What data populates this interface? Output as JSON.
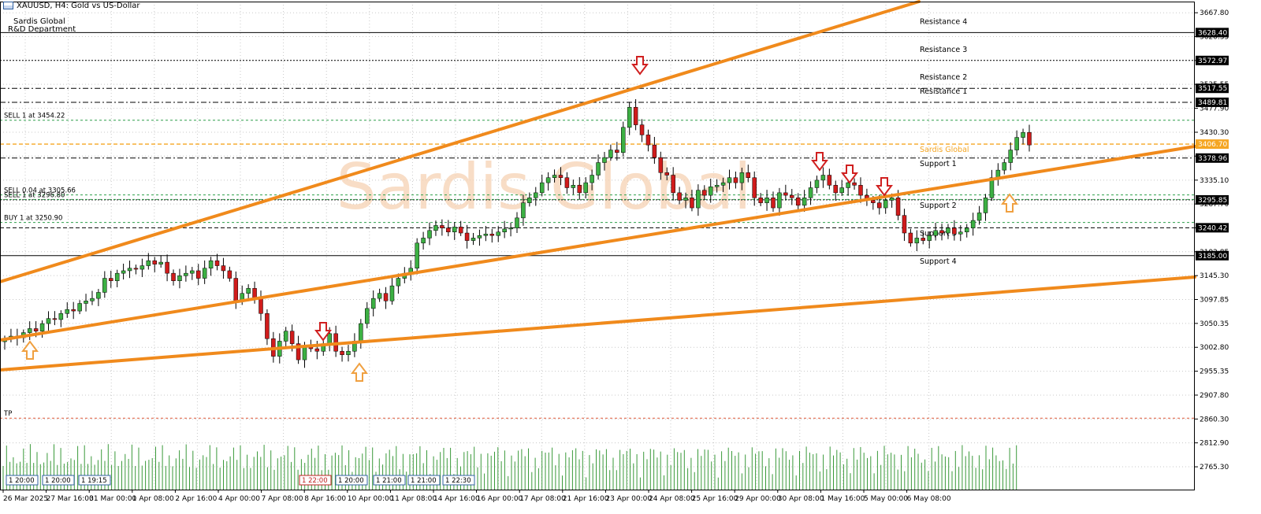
{
  "header": {
    "symbol_label": "XAUUSD, H4:  Gold vs US-Dollar",
    "company": "Sardis Global",
    "department": "R&D Department"
  },
  "watermark": "Sardis Global",
  "chart_data": {
    "type": "candlestick",
    "ylim": [
      2720,
      3690
    ],
    "price_ticks": [
      "3667.80",
      "3620.35",
      "3572.97",
      "3525.55",
      "3477.90",
      "3430.30",
      "3382.90",
      "3335.10",
      "3287.70",
      "3240.20",
      "3192.85",
      "3145.30",
      "3097.85",
      "3050.35",
      "3002.80",
      "2955.35",
      "2907.80",
      "2860.30",
      "2812.90",
      "2765.30"
    ],
    "time_labels": [
      "26 Mar 2025",
      "27 Mar 16:00",
      "31 Mar 00:00",
      "1 Apr 08:00",
      "2 Apr 16:00",
      "4 Apr 00:00",
      "7 Apr 08:00",
      "8 Apr 16:00",
      "10 Apr 00:00",
      "11 Apr 08:00",
      "14 Apr 16:00",
      "16 Apr 00:00",
      "17 Apr 08:00",
      "21 Apr 16:00",
      "23 Apr 00:00",
      "24 Apr 08:00",
      "25 Apr 16:00",
      "29 Apr 00:00",
      "30 Apr 08:00",
      "1 May 16:00",
      "5 May 00:00",
      "6 May 08:00"
    ],
    "levels": [
      {
        "name": "Resistance 4",
        "price": 3628.4,
        "label": "3628.40",
        "style": "solid",
        "color": "#000000"
      },
      {
        "name": "Resistance 3",
        "price": 3572.97,
        "label": "3572.97",
        "style": "dotted",
        "color": "#000000"
      },
      {
        "name": "Resistance 2",
        "price": 3517.55,
        "label": "3517.55",
        "style": "dashdot",
        "color": "#000000"
      },
      {
        "name": "Resistance 1",
        "price": 3489.81,
        "label": "3489.81",
        "style": "dashdot",
        "color": "#000000"
      },
      {
        "name": "Sardis Global",
        "price": 3406.7,
        "label": "3406.70",
        "style": "dashed",
        "color": "#f5a623"
      },
      {
        "name": "Support 1",
        "price": 3378.96,
        "label": "3378.96",
        "style": "dashdot",
        "color": "#000000"
      },
      {
        "name": "Support 2",
        "price": 3295.85,
        "label": "3295.85",
        "style": "dotted",
        "color": "#000000"
      },
      {
        "name": "Support 3",
        "price": 3240.42,
        "label": "3240.42",
        "style": "dashed",
        "color": "#000000"
      },
      {
        "name": "Support 4",
        "price": 3185.0,
        "label": "3185.00",
        "style": "solid",
        "color": "#000000"
      }
    ],
    "order_lines": [
      {
        "label": "SELL 1 at 3454.22",
        "price": 3454.22
      },
      {
        "label": "SELL 0.04 at 3305.66",
        "price": 3305.66
      },
      {
        "label": "SELL 1 at 3296.80",
        "price": 3296.8
      },
      {
        "label": "BUY 1 at 3250.90",
        "price": 3250.9
      },
      {
        "label": "TP",
        "price": 2862
      }
    ],
    "trade_badges": [
      "1 20:00",
      "1 20:00",
      "1 19:15",
      "1 22:00",
      "1 20:00",
      "1 21:00",
      "1 21:00",
      "1 22:30"
    ],
    "closes": [
      3020,
      3025,
      3022,
      3032,
      3040,
      3035,
      3050,
      3060,
      3058,
      3070,
      3078,
      3075,
      3090,
      3095,
      3100,
      3112,
      3140,
      3135,
      3150,
      3155,
      3160,
      3158,
      3165,
      3175,
      3168,
      3172,
      3150,
      3135,
      3145,
      3150,
      3155,
      3140,
      3160,
      3175,
      3165,
      3155,
      3140,
      3095,
      3110,
      3120,
      3100,
      3070,
      3020,
      2985,
      3015,
      3035,
      3010,
      2978,
      3005,
      3000,
      2995,
      3010,
      3030,
      2995,
      2988,
      2995,
      3015,
      3050,
      3080,
      3100,
      3110,
      3095,
      3125,
      3140,
      3150,
      3160,
      3210,
      3220,
      3235,
      3245,
      3240,
      3232,
      3242,
      3230,
      3215,
      3220,
      3225,
      3228,
      3225,
      3232,
      3238,
      3240,
      3260,
      3290,
      3300,
      3310,
      3330,
      3340,
      3345,
      3340,
      3320,
      3325,
      3310,
      3330,
      3345,
      3370,
      3380,
      3395,
      3390,
      3440,
      3480,
      3445,
      3425,
      3405,
      3380,
      3350,
      3345,
      3310,
      3295,
      3300,
      3280,
      3315,
      3305,
      3322,
      3325,
      3330,
      3340,
      3330,
      3350,
      3340,
      3300,
      3290,
      3300,
      3280,
      3310,
      3305,
      3300,
      3285,
      3300,
      3320,
      3335,
      3345,
      3325,
      3310,
      3320,
      3330,
      3325,
      3305,
      3295,
      3290,
      3280,
      3295,
      3300,
      3265,
      3230,
      3210,
      3220,
      3215,
      3225,
      3235,
      3230,
      3240,
      3228,
      3232,
      3240,
      3255,
      3270,
      3300,
      3340,
      3355,
      3370,
      3395,
      3420,
      3430,
      3405
    ]
  }
}
